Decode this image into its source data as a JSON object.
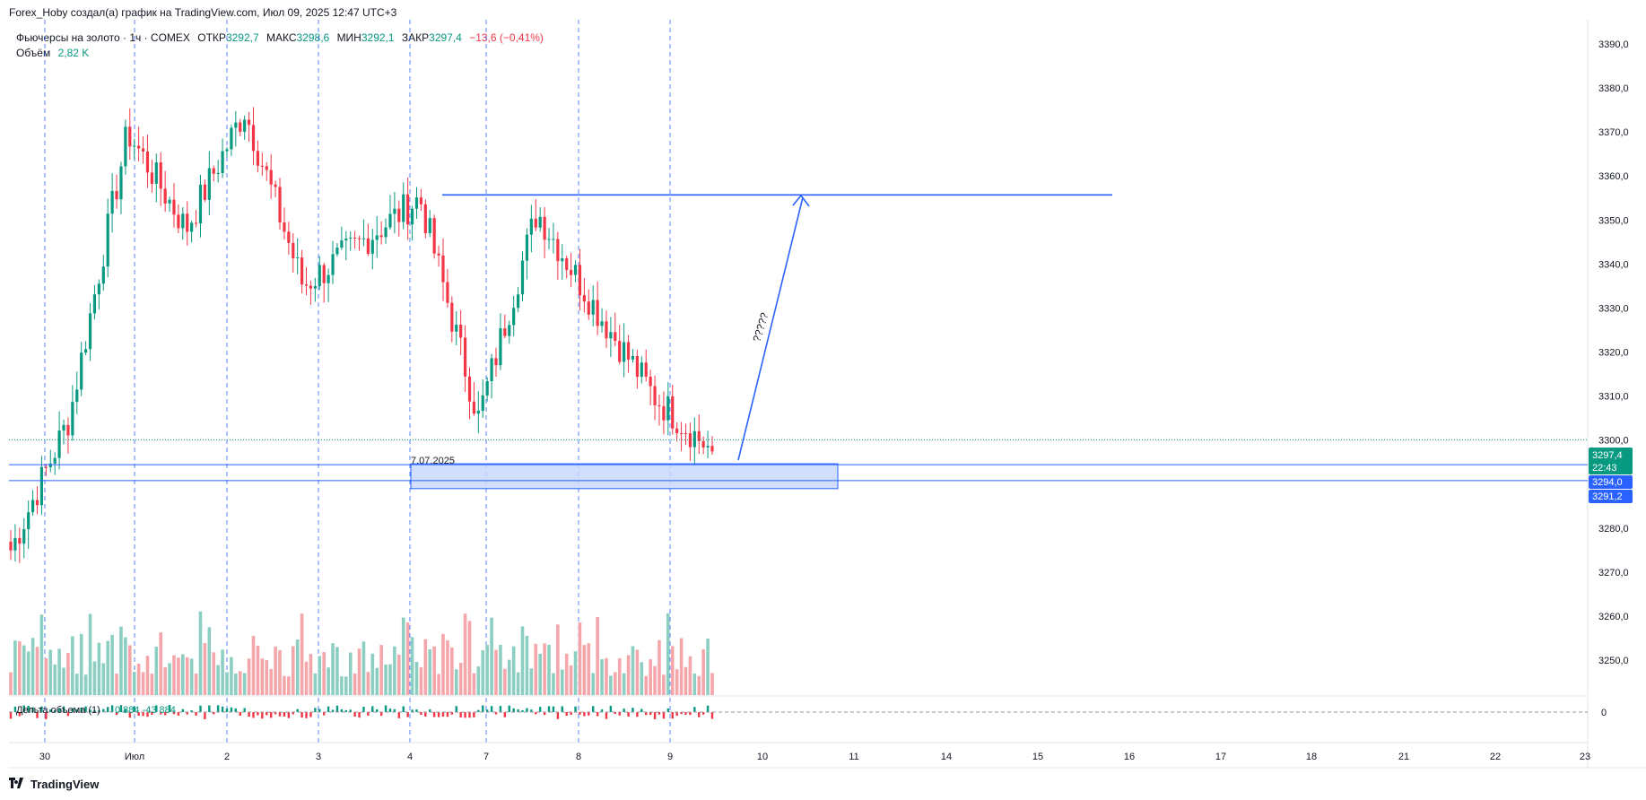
{
  "header": {
    "author_line": "Forex_Hoby создал(а) график на TradingView.com, Июл 09, 2025 12:47 UTC+3"
  },
  "legend": {
    "symbol": "Фьючерсы на золото · 1ч · COMEX",
    "open_label": "ОТКР",
    "open_value": "3292,7",
    "high_label": "МАКС",
    "high_value": "3298,6",
    "low_label": "МИН",
    "low_value": "3292,1",
    "close_label": "ЗАКР",
    "close_value": "3297,4",
    "change": "−13,6 (−0,41%)",
    "volume_label": "Объём",
    "volume_value": "2,82 K"
  },
  "delta_legend": {
    "label": "Дельта объема (1)",
    "values": "0  884  -43 884"
  },
  "annotations": {
    "zone_label": "7.07.2025",
    "question": "?????"
  },
  "price_badges": {
    "last_price": "3297,4",
    "countdown": "22:43",
    "level_1": "3294,0",
    "level_2": "3291,2"
  },
  "delta_axis_label": "0",
  "branding": {
    "logo_text": "TradingView"
  },
  "colors": {
    "up": "#089981",
    "down": "#f23645",
    "vol_up": "#8ccfc2",
    "vol_down": "#f5a6ab",
    "drawing": "#2962ff",
    "zone_fill": "#c9d8fb",
    "badge_green": "#089981",
    "badge_blue": "#2962ff"
  },
  "chart_data": {
    "type": "candlestick",
    "title": "Фьючерсы на золото · 1ч · COMEX",
    "timeframe": "1h",
    "price_axis": {
      "ylim": [
        3242,
        3398
      ],
      "ticks": [
        "3390,0",
        "3380,0",
        "3370,0",
        "3360,0",
        "3350,0",
        "3340,0",
        "3330,0",
        "3320,0",
        "3310,0",
        "3300,0",
        "3280,0",
        "3270,0",
        "3260,0",
        "3250,0"
      ]
    },
    "time_axis": {
      "ticks": [
        "30",
        "Июл",
        "2",
        "3",
        "4",
        "7",
        "8",
        "9",
        "10",
        "11",
        "14",
        "15",
        "16",
        "17",
        "18",
        "21",
        "22",
        "23"
      ]
    },
    "day_separators": [
      "30",
      "Июл",
      "2",
      "3",
      "4",
      "7",
      "8",
      "9"
    ],
    "key_points": [
      {
        "time": "30",
        "price": 3275
      },
      {
        "time": "Июл",
        "price": 3305
      },
      {
        "time": "1 (mid)",
        "price": 3370
      },
      {
        "time": "2",
        "price": 3348
      },
      {
        "time": "3",
        "price": 3375
      },
      {
        "time": "3 (late)",
        "price": 3335
      },
      {
        "time": "4",
        "price": 3345
      },
      {
        "time": "7 (start)",
        "price": 3355
      },
      {
        "time": "7 (late)",
        "price": 3305
      },
      {
        "time": "8",
        "price": 3352
      },
      {
        "time": "8 (late)",
        "price": 3330
      },
      {
        "time": "9 (start)",
        "price": 3310
      },
      {
        "time": "9 (last)",
        "price": 3297.4
      }
    ],
    "resistance_level": 3355.7,
    "demand_zone": {
      "label": "7.07.2025",
      "from": 3291.2,
      "to": 3294.0
    },
    "projection": {
      "label": "?????",
      "from_price": 3299,
      "to_price": 3356
    },
    "last_price": 3297.4,
    "volume_pane": {
      "label": "Объём",
      "last": "2,82 K"
    },
    "delta_pane": {
      "label": "Дельта объема (1)",
      "zero_line": 0
    }
  }
}
